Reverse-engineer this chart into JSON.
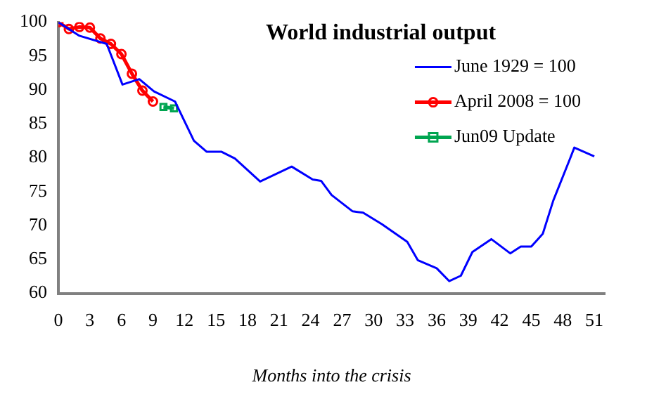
{
  "chart_data": {
    "type": "line",
    "title": "World industrial output",
    "xlabel": "Months into the crisis",
    "xlim": [
      0,
      52
    ],
    "xticks": [
      0,
      3,
      6,
      9,
      12,
      15,
      18,
      21,
      24,
      27,
      30,
      33,
      36,
      39,
      42,
      45,
      48,
      51
    ],
    "ylim": [
      60,
      100
    ],
    "yticks": [
      60,
      65,
      70,
      75,
      80,
      85,
      90,
      95,
      100
    ],
    "grid": false,
    "legend": "top right",
    "series": [
      {
        "name": "June 1929 = 100",
        "color": "#0000ff",
        "marker": "none",
        "x": [
          0,
          2,
          4.6,
          6.1,
          7.7,
          9.1,
          11.1,
          12.9,
          14.1,
          15.5,
          16.8,
          19.2,
          22.2,
          24.2,
          25,
          26,
          28,
          29,
          30.8,
          33.2,
          34.2,
          36,
          37.2,
          38.3,
          39.4,
          41.2,
          43,
          44,
          45,
          46.1,
          47.1,
          48.7,
          49.1,
          51
        ],
        "values": [
          100,
          98,
          96.8,
          90.8,
          91.6,
          89.8,
          88.3,
          82.5,
          80.9,
          80.9,
          79.9,
          76.5,
          78.7,
          76.8,
          76.6,
          74.5,
          72.1,
          71.9,
          70.2,
          67.6,
          64.9,
          63.7,
          61.8,
          62.6,
          66.1,
          68,
          65.9,
          66.9,
          66.9,
          68.8,
          73.7,
          79.9,
          81.5,
          80.2
        ]
      },
      {
        "name": "April 2008 = 100",
        "color": "#ff0000",
        "marker": "circle",
        "x": [
          0,
          1,
          2,
          3,
          4,
          5,
          6,
          7,
          8,
          9
        ],
        "values": [
          100,
          99,
          99.3,
          99.2,
          97.6,
          96.8,
          95.3,
          92.4,
          89.9,
          88.3
        ]
      },
      {
        "name": "Jun09 Update",
        "color": "#00a550",
        "marker": "square",
        "x": [
          10,
          11
        ],
        "values": [
          87.5,
          87.3
        ]
      }
    ]
  }
}
